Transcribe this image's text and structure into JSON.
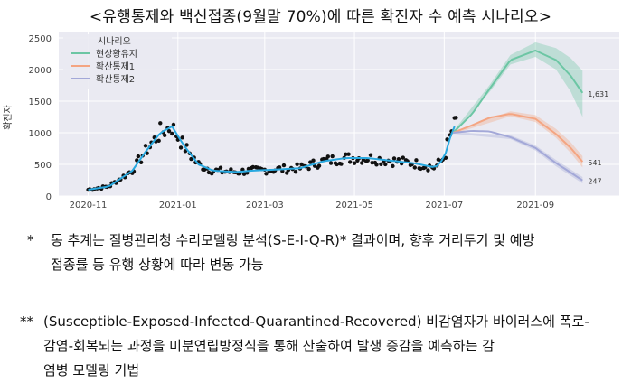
{
  "title": "<유행통제와 백신접종(9월말 70%)에 따른 확진자 수 예측 시나리오>",
  "notes": {
    "note1_mark": "*",
    "note1_line1": "동 추계는 질병관리청 수리모델링 분석(S-E-I-Q-R)* 결과이며, 향후 거리두기 및 예방",
    "note1_line2": "접종률 등 유행 상황에 따라 변동 가능",
    "note2_mark": "**",
    "note2_line1": "(Susceptible-Exposed-Infected-Quarantined-Recovered) 비감염자가 바이러스에 폭로-",
    "note2_line2": "감염-회복되는 과정을 미분연립방정식을 통해 산출하여 발생 증감을 예측하는 감",
    "note2_line3": "염병 모델링 기법"
  },
  "chart_data": {
    "type": "line",
    "title": "",
    "xlabel": "",
    "ylabel": "확진자",
    "ylim": [
      0,
      2600
    ],
    "yticks": [
      0,
      500,
      1000,
      1500,
      2000,
      2500
    ],
    "xticks": [
      {
        "date": "2020-11-01",
        "label": "2020-11"
      },
      {
        "date": "2021-01-01",
        "label": "2021-01"
      },
      {
        "date": "2021-03-01",
        "label": "2021-03"
      },
      {
        "date": "2021-05-01",
        "label": "2021-05"
      },
      {
        "date": "2021-07-01",
        "label": "2021-07"
      },
      {
        "date": "2021-09-01",
        "label": "2021-09"
      }
    ],
    "xlim": [
      "2020-10-12",
      "2021-10-28"
    ],
    "grid": true,
    "legend": {
      "title": "시나리오",
      "position": "top-left"
    },
    "colors": {
      "background": "#eaeaf2",
      "observed_points": "#111111",
      "fitted": "#29a9e0",
      "현상황유지": "#6cc6a4",
      "확산통제1": "#f4a582",
      "확산통제2": "#a3a8d8"
    },
    "observed_anchor": [
      [
        "2020-11-01",
        100
      ],
      [
        "2020-11-15",
        150
      ],
      [
        "2020-12-01",
        400
      ],
      [
        "2020-12-10",
        700
      ],
      [
        "2020-12-20",
        1000
      ],
      [
        "2020-12-28",
        1100
      ],
      [
        "2021-01-05",
        800
      ],
      [
        "2021-01-15",
        500
      ],
      [
        "2021-01-25",
        400
      ],
      [
        "2021-02-10",
        380
      ],
      [
        "2021-02-20",
        400
      ],
      [
        "2021-03-10",
        420
      ],
      [
        "2021-03-25",
        440
      ],
      [
        "2021-04-10",
        550
      ],
      [
        "2021-04-25",
        600
      ],
      [
        "2021-05-10",
        600
      ],
      [
        "2021-05-25",
        560
      ],
      [
        "2021-06-10",
        520
      ],
      [
        "2021-06-25",
        450
      ],
      [
        "2021-07-01",
        600
      ],
      [
        "2021-07-06",
        1000
      ],
      [
        "2021-07-10",
        1200
      ]
    ],
    "series": [
      {
        "name": "현상황유지",
        "points": [
          [
            "2021-07-07",
            1000
          ],
          [
            "2021-07-20",
            1300
          ],
          [
            "2021-08-01",
            1700
          ],
          [
            "2021-08-15",
            2150
          ],
          [
            "2021-09-01",
            2300
          ],
          [
            "2021-09-15",
            2150
          ],
          [
            "2021-09-25",
            1900
          ],
          [
            "2021-10-03",
            1631
          ]
        ],
        "band": [
          [
            "2021-07-07",
            980,
            1020
          ],
          [
            "2021-08-01",
            1650,
            1760
          ],
          [
            "2021-08-15",
            2080,
            2230
          ],
          [
            "2021-09-01",
            2200,
            2430
          ],
          [
            "2021-09-15",
            2000,
            2340
          ],
          [
            "2021-09-25",
            1650,
            2180
          ],
          [
            "2021-10-03",
            1250,
            1980
          ]
        ],
        "end_label": "1,631"
      },
      {
        "name": "확산통제1",
        "points": [
          [
            "2021-07-07",
            1000
          ],
          [
            "2021-07-20",
            1120
          ],
          [
            "2021-08-01",
            1240
          ],
          [
            "2021-08-15",
            1300
          ],
          [
            "2021-09-01",
            1220
          ],
          [
            "2021-09-15",
            980
          ],
          [
            "2021-09-25",
            760
          ],
          [
            "2021-10-03",
            541
          ]
        ],
        "band": [
          [
            "2021-07-07",
            980,
            1020
          ],
          [
            "2021-08-15",
            1260,
            1340
          ],
          [
            "2021-09-01",
            1170,
            1280
          ],
          [
            "2021-09-15",
            920,
            1060
          ],
          [
            "2021-09-25",
            680,
            850
          ],
          [
            "2021-10-03",
            450,
            630
          ]
        ],
        "end_label": "541"
      },
      {
        "name": "확산통제2",
        "points": [
          [
            "2021-07-07",
            1000
          ],
          [
            "2021-07-20",
            1030
          ],
          [
            "2021-08-01",
            1020
          ],
          [
            "2021-08-15",
            930
          ],
          [
            "2021-09-01",
            760
          ],
          [
            "2021-09-15",
            520
          ],
          [
            "2021-09-25",
            370
          ],
          [
            "2021-10-03",
            247
          ]
        ],
        "band": [
          [
            "2021-07-07",
            985,
            1015
          ],
          [
            "2021-08-15",
            900,
            960
          ],
          [
            "2021-09-01",
            720,
            800
          ],
          [
            "2021-09-15",
            470,
            570
          ],
          [
            "2021-09-25",
            320,
            420
          ],
          [
            "2021-10-03",
            200,
            300
          ]
        ],
        "end_label": "247"
      }
    ]
  }
}
